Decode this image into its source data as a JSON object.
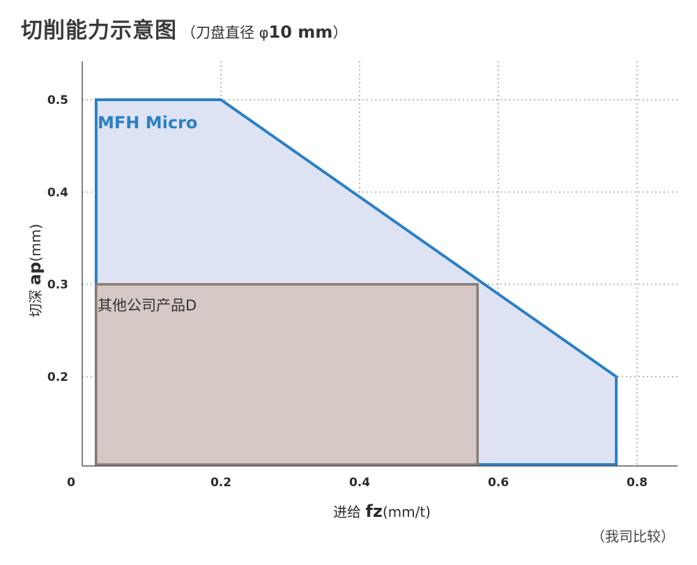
{
  "title": {
    "main": "切削能力示意图",
    "sub_prefix": "（刀盘直径 φ",
    "sub_bold": "10 mm",
    "sub_suffix": "）"
  },
  "note": "（我司比较）",
  "chart_data": {
    "type": "area",
    "title": "切削能力示意图（刀盘直径 φ10 mm）",
    "xlabel": {
      "plain": "进给 ",
      "bold": "fz",
      "unit": "(mm/t)"
    },
    "ylabel": {
      "plain": "切深 ",
      "bold": "ap",
      "unit": "(mm)"
    },
    "xlim": [
      0,
      0.85
    ],
    "ylim": [
      0.1,
      0.54
    ],
    "xticks": [
      0,
      0.2,
      0.4,
      0.6,
      0.8
    ],
    "xtick_labels": [
      "0",
      "0.2",
      "0.4",
      "0.6",
      "0.8"
    ],
    "yticks": [
      0.2,
      0.3,
      0.4,
      0.5
    ],
    "ytick_labels": [
      "0.2",
      "0.3",
      "0.4",
      "0.5"
    ],
    "grid": true,
    "series": [
      {
        "name": "MFH Micro",
        "color": "#2a80c4",
        "fill": "#dde3f3",
        "points": [
          [
            0.02,
            0.1
          ],
          [
            0.02,
            0.5
          ],
          [
            0.2,
            0.5
          ],
          [
            0.58,
            0.3
          ],
          [
            0.77,
            0.2
          ],
          [
            0.77,
            0.1
          ]
        ]
      },
      {
        "name": "其他公司产品D",
        "color": "#8a7b76",
        "fill": "#d5c8c5",
        "points": [
          [
            0.02,
            0.1
          ],
          [
            0.02,
            0.3
          ],
          [
            0.57,
            0.3
          ],
          [
            0.57,
            0.1
          ]
        ]
      }
    ]
  }
}
